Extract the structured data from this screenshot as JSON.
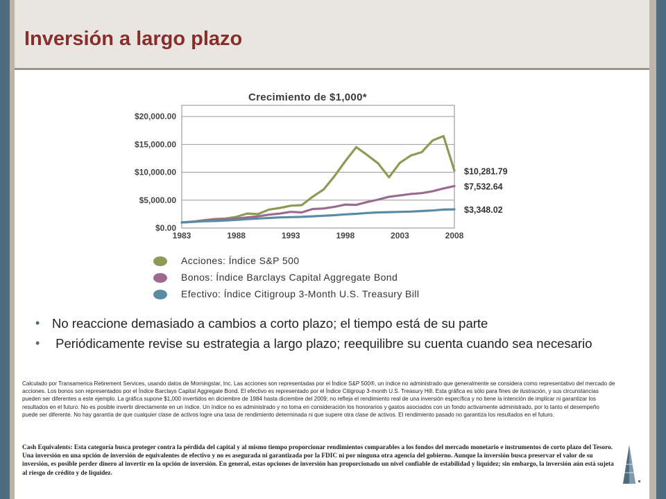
{
  "slide": {
    "title": "Inversión a largo plazo"
  },
  "chart_data": {
    "type": "line",
    "title": "Crecimiento de $1,000*",
    "xlabel": "",
    "ylabel": "",
    "x_ticks": [
      "1983",
      "1988",
      "1993",
      "1998",
      "2003",
      "2008"
    ],
    "y_ticks": [
      "$0.00",
      "$5,000.00",
      "$10,000.00",
      "$15,000.00",
      "$20,000.00"
    ],
    "xlim": [
      1983,
      2008
    ],
    "ylim": [
      0,
      22000
    ],
    "grid": true,
    "legend_position": "bottom",
    "x": [
      1983,
      1984,
      1985,
      1986,
      1987,
      1988,
      1989,
      1990,
      1991,
      1992,
      1993,
      1994,
      1995,
      1996,
      1997,
      1998,
      1999,
      2000,
      2001,
      2002,
      2003,
      2004,
      2005,
      2006,
      2007,
      2008
    ],
    "series": [
      {
        "name": "Acciones: Índice S&P 500",
        "color": "#8b9a55",
        "values": [
          1000,
          1100,
          1400,
          1600,
          1700,
          2000,
          2600,
          2500,
          3300,
          3600,
          4000,
          4100,
          5600,
          6900,
          9300,
          12000,
          14500,
          13100,
          11600,
          9100,
          11700,
          13000,
          13600,
          15700,
          16500,
          10281.79
        ],
        "end_label": "$10,281.79"
      },
      {
        "name": "Bonos: Índice Barclays Capital Aggregate Bond",
        "color": "#9c6a8e",
        "values": [
          1000,
          1150,
          1300,
          1500,
          1550,
          1700,
          1900,
          2100,
          2400,
          2600,
          2900,
          2800,
          3400,
          3500,
          3800,
          4200,
          4150,
          4650,
          5100,
          5600,
          5850,
          6100,
          6250,
          6600,
          7100,
          7532.64
        ],
        "end_label": "$7,532.64"
      },
      {
        "name": "Efectivo: Índice Citigroup 3-Month U.S. Treasury Bill",
        "color": "#5b8aa3",
        "values": [
          1000,
          1100,
          1200,
          1250,
          1350,
          1450,
          1600,
          1700,
          1800,
          1900,
          1950,
          2000,
          2100,
          2200,
          2300,
          2450,
          2550,
          2700,
          2800,
          2850,
          2900,
          2950,
          3050,
          3150,
          3300,
          3348.02
        ],
        "end_label": "$3,348.02"
      }
    ]
  },
  "bullets": [
    "No reaccione demasiado a cambios a corto plazo; el tiempo está de su parte",
    " Periódicamente revise su estrategia a largo plazo; reequilibre su cuenta cuando sea necesario"
  ],
  "footnotes": {
    "disclaimer": "Calculado por Transamerica Retirement Services, usando datos de Morningstar, Inc. Las acciones son representadas por el Índice S&P 500®, un índice no administrado que generalmente se considera como representativo del mercado de acciones. Los bonos son representados por el Índice Barclays Capital Aggregate Bond. El efectivo es representado por el Índice Citigroup 3-month U.S. Treasury Hill. Esta gráfica es sólo para fines de ilustración, y sus circunstancias pueden ser diferentes a este ejemplo. La gráfica supone $1,000 invertidos en diciembre de 1984 hasta diciembre del 2009; no refleja el rendimiento real de una inversión específica y no tiene la intención de implicar ni garantizar los resultados en el futuro. No es posible invertir directamente en un índice. Un índice no es administrado y no toma en consideración los honorarios y gastos asociados con un fondo activamente administrado, por lo tanto el desempeño puede ser diferente. No hay garantía de que cualquier clase de activos logre una tasa de rendimiento determinada ni que supere otra clase de activos. El rendimiento pasado no garantiza los resultados en el futuro.",
    "cash": "Cash Equivalents: Esta categoría busca proteger contra la pérdida del capital y al mismo tiempo proporcionar rendimientos comparables a los fondos del mercado monetario e instrumentos de corto plazo del Tesoro. Una inversión en una opción de inversión de equivalentes de efectivo y no es asegurada ni garantizada por la FDIC ni por ninguna otra agencia del gobierno. Aunque la inversión busca preservar el valor de su inversión, es posible perder dinero al invertir en la opción de inversión. En general, estas opciones de inversión han proporcionado un nivel confiable de estabilidad y liquidez; sin embargo, la inversión aún está sujeta al riesgo de crédito y de liquidez."
  },
  "logo": {
    "icon": "pyramid-logo-icon"
  }
}
